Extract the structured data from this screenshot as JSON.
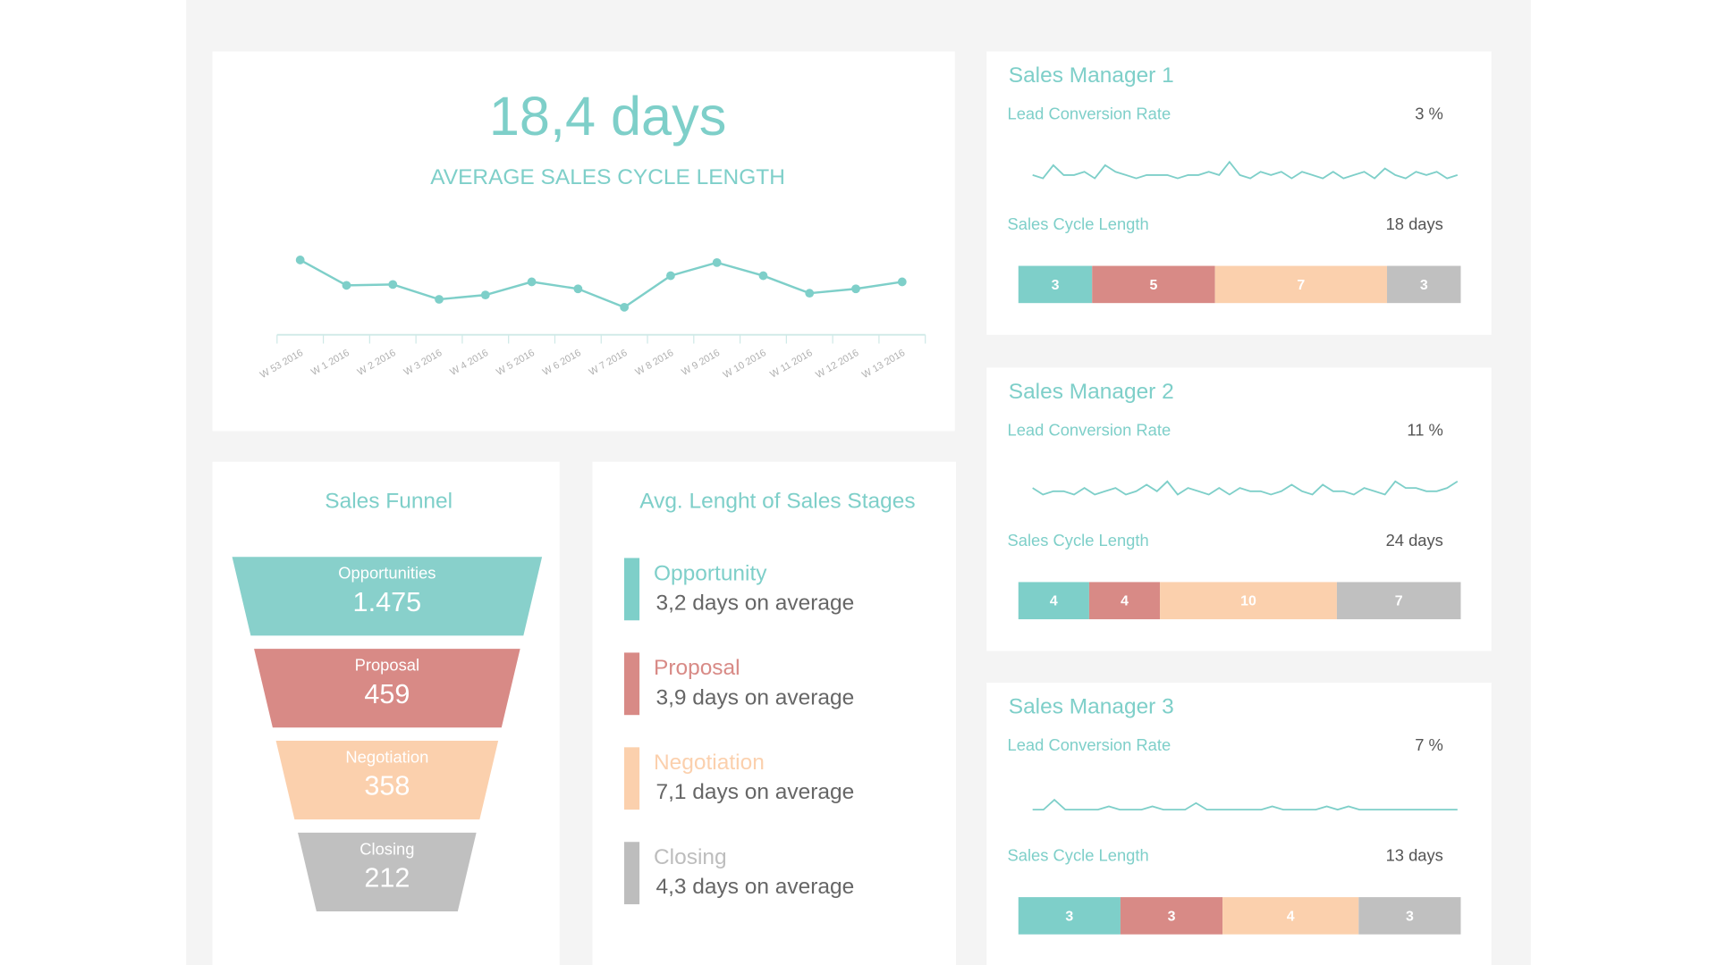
{
  "chart_data": [
    {
      "type": "line",
      "title": "18,4 days",
      "subtitle": "AVERAGE SALES CYCLE LENGTH",
      "categories": [
        "W 53 2016",
        "W 1 2016",
        "W 2 2016",
        "W 3 2016",
        "W 4 2016",
        "W 5 2016",
        "W 6 2016",
        "W 7 2016",
        "W 8 2016",
        "W 9 2016",
        "W 10 2016",
        "W 11 2016",
        "W 12 2016",
        "W 13 2016"
      ],
      "values": [
        20.3,
        17.4,
        17.5,
        15.8,
        16.3,
        17.8,
        17.0,
        14.9,
        18.5,
        20.0,
        18.5,
        16.5,
        17.0,
        17.8
      ],
      "ylim": [
        10,
        25
      ],
      "color": "#7ecfc9"
    },
    {
      "type": "funnel",
      "title": "Sales Funnel",
      "categories": [
        "Opportunities",
        "Proposal",
        "Negotiation",
        "Closing"
      ],
      "values": [
        1475,
        459,
        358,
        212
      ],
      "value_labels": [
        "1.475",
        "459",
        "358",
        "212"
      ],
      "colors": [
        "#88d0cb",
        "#d88a86",
        "#fbd0ad",
        "#c0c0c0"
      ]
    },
    {
      "type": "sparkline",
      "color": "#7ecfc9",
      "ylim": [
        0,
        10
      ],
      "values": [
        4,
        3,
        7,
        4,
        4,
        5,
        3,
        7,
        5,
        4,
        3,
        4,
        4,
        4,
        3,
        4,
        4,
        5,
        4,
        8,
        4,
        3,
        5,
        4,
        5,
        3,
        5,
        4,
        3,
        5,
        3,
        4,
        5,
        3,
        6,
        4,
        3,
        5,
        4,
        5,
        3,
        4
      ]
    },
    {
      "type": "sparkline",
      "color": "#7ecfc9",
      "ylim": [
        0,
        10
      ],
      "values": [
        5,
        3,
        4,
        4,
        3,
        5,
        3,
        4,
        5,
        3,
        4,
        6,
        4,
        7,
        3,
        5,
        4,
        3,
        5,
        3,
        5,
        4,
        4,
        3,
        4,
        6,
        4,
        3,
        6,
        4,
        4,
        3,
        5,
        4,
        3,
        7,
        5,
        5,
        4,
        4,
        5,
        7
      ]
    },
    {
      "type": "sparkline",
      "color": "#7ecfc9",
      "ylim": [
        0,
        10
      ],
      "values": [
        3,
        3,
        6,
        3,
        3,
        3,
        3,
        4,
        3,
        3,
        3,
        4,
        3,
        3,
        3,
        5,
        3,
        3,
        3,
        3,
        3,
        3,
        4,
        3,
        3,
        3,
        3,
        4,
        3,
        4,
        3,
        3,
        3,
        3,
        3,
        3,
        3,
        3,
        3,
        3
      ]
    },
    {
      "type": "stacked-bar",
      "values": [
        3,
        5,
        7,
        3
      ],
      "colors": [
        "#7ecfc9",
        "#d88a86",
        "#fbd0ad",
        "#c0c0c0"
      ]
    },
    {
      "type": "stacked-bar",
      "values": [
        4,
        4,
        10,
        7
      ],
      "colors": [
        "#7ecfc9",
        "#d88a86",
        "#fbd0ad",
        "#c0c0c0"
      ]
    },
    {
      "type": "stacked-bar",
      "values": [
        3,
        3,
        4,
        3
      ],
      "colors": [
        "#7ecfc9",
        "#d88a86",
        "#fbd0ad",
        "#c0c0c0"
      ]
    }
  ],
  "sales_stages": {
    "title": "Avg. Lenght of Sales Stages",
    "items": [
      {
        "name": "Opportunity",
        "text": "3,2 days on average",
        "color": "#7ecfc9"
      },
      {
        "name": "Proposal",
        "text": "3,9 days on average",
        "color": "#d88a86"
      },
      {
        "name": "Negotiation",
        "text": "7,1 days on average",
        "color": "#fbd0ad"
      },
      {
        "name": "Closing",
        "text": "4,3 days on average",
        "color": "#bdbdbd"
      }
    ]
  },
  "managers": [
    {
      "name": "Sales Manager 1",
      "rate_label": "Lead Conversion Rate",
      "rate": "3 %",
      "cycle_label": "Sales Cycle Length",
      "cycle": "18 days"
    },
    {
      "name": "Sales Manager 2",
      "rate_label": "Lead Conversion Rate",
      "rate": "11 %",
      "cycle_label": "Sales Cycle Length",
      "cycle": "24 days"
    },
    {
      "name": "Sales Manager 3",
      "rate_label": "Lead Conversion Rate",
      "rate": "7 %",
      "cycle_label": "Sales Cycle Length",
      "cycle": "13 days"
    }
  ]
}
